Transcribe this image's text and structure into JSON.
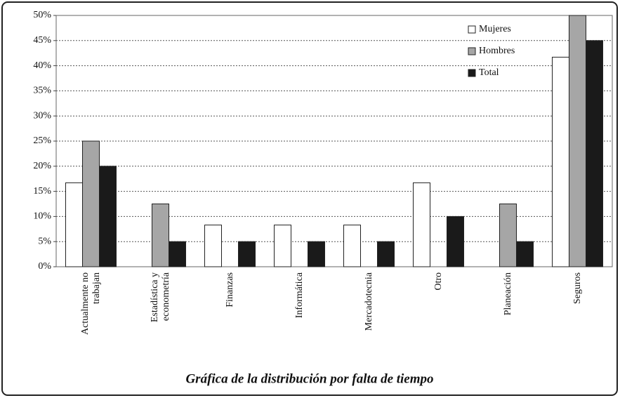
{
  "chart_data": {
    "type": "bar",
    "title": "Gráfica de la distribución por falta de tiempo",
    "categories": [
      "Actualmente no\ntrabajan",
      "Estadística y\neconometría",
      "Finanzas",
      "Informática",
      "Mercadotecnia",
      "Otro",
      "Planeación",
      "Seguros"
    ],
    "series": [
      {
        "name": "Mujeres",
        "color": "#ffffff",
        "values": [
          16.7,
          0,
          8.3,
          8.3,
          8.3,
          16.7,
          0,
          41.7
        ]
      },
      {
        "name": "Hombres",
        "color": "#a6a6a6",
        "values": [
          25,
          12.5,
          0,
          0,
          0,
          0,
          12.5,
          50
        ]
      },
      {
        "name": "Total",
        "color": "#1a1a1a",
        "values": [
          20,
          5,
          5,
          5,
          5,
          10,
          5,
          45
        ]
      }
    ],
    "ylim": [
      0,
      50
    ],
    "yticks": [
      {
        "value": 0,
        "label": "0%"
      },
      {
        "value": 5,
        "label": "5%"
      },
      {
        "value": 10,
        "label": "10%"
      },
      {
        "value": 15,
        "label": "15%"
      },
      {
        "value": 20,
        "label": "20%"
      },
      {
        "value": 25,
        "label": "25%"
      },
      {
        "value": 30,
        "label": "30%"
      },
      {
        "value": 35,
        "label": "35%"
      },
      {
        "value": 40,
        "label": "40%"
      },
      {
        "value": 45,
        "label": "45%"
      },
      {
        "value": 50,
        "label": "50%"
      }
    ],
    "grid": true,
    "legend": "top-right"
  }
}
